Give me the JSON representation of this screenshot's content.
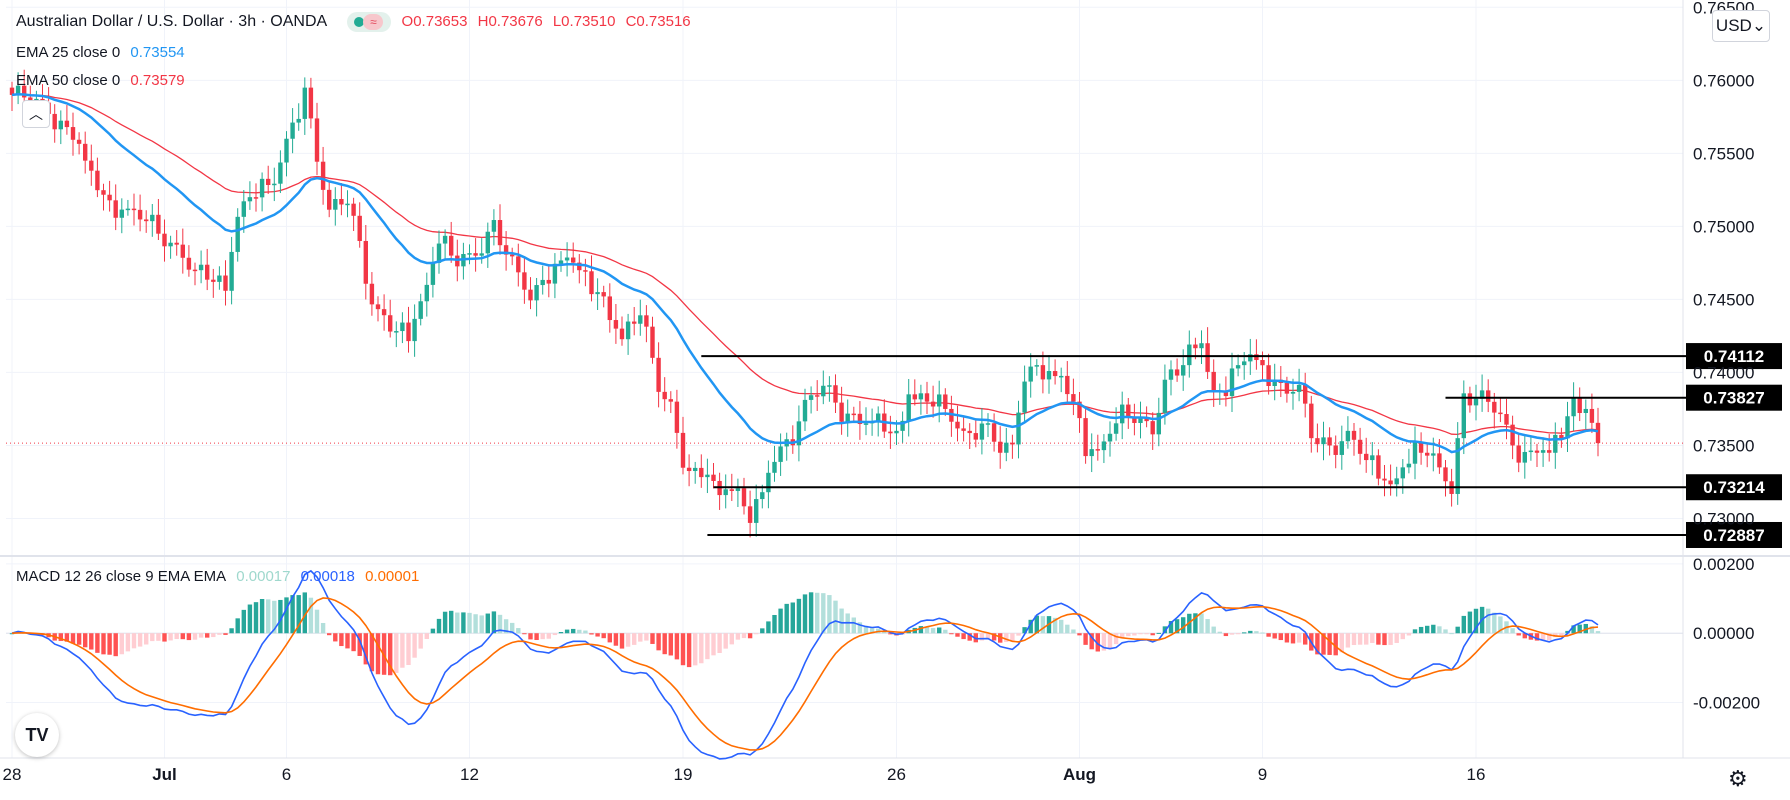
{
  "header": {
    "title": "Australian Dollar / U.S. Dollar · 3h · OANDA",
    "open": "O0.73653",
    "high": "H0.73676",
    "low": "L0.73510",
    "close": "C0.73516",
    "wave_icon": "≈",
    "currency": "USD",
    "currency_chevron": "⌄"
  },
  "indicators": {
    "ema25": {
      "label": "EMA 25 close 0",
      "value": "0.73554",
      "color": "#2196f3"
    },
    "ema50": {
      "label": "EMA 50 close 0",
      "value": "0.73579",
      "color": "#f23645"
    },
    "macd": {
      "label": "MACD 12 26 close 9 EMA EMA",
      "hist": "0.00017",
      "macd": "0.00018",
      "signal": "0.00001",
      "hist_color": "#9fd8cd",
      "macd_color": "#2962ff",
      "signal_color": "#ff6d00"
    }
  },
  "colors": {
    "up": "#22ab94",
    "down": "#f23645",
    "ema25": "#2196f3",
    "ema50": "#f23645",
    "level": "#000000",
    "grid": "#f0f3fa",
    "axis_text": "#131722"
  },
  "logo_text": "TV",
  "settings_icon": "⚙",
  "collapse_icon": "︿",
  "chart_data": {
    "type": "candlestick",
    "title": "Australian Dollar / U.S. Dollar, 3h, OANDA",
    "price_ticks": [
      "0.76500",
      "0.76000",
      "0.75500",
      "0.75000",
      "0.74500",
      "0.74000",
      "0.73500",
      "0.73000"
    ],
    "price_tick_values": [
      0.765,
      0.76,
      0.755,
      0.75,
      0.745,
      0.74,
      0.735,
      0.73
    ],
    "macd_ticks": [
      "0.00200",
      "0.00000",
      "-0.00200"
    ],
    "macd_tick_values": [
      0.002,
      0,
      -0.002
    ],
    "x_labels": [
      "28",
      "Jul",
      "6",
      "12",
      "19",
      "26",
      "Aug",
      "9",
      "16"
    ],
    "x_label_index": [
      0,
      25,
      45,
      75,
      110,
      145,
      175,
      205,
      240
    ],
    "ylim": [
      0.7275,
      0.7655
    ],
    "macd_ylim": [
      -0.0036,
      0.0022
    ],
    "levels": [
      {
        "label": "0.74112",
        "value": 0.74112,
        "from": 113
      },
      {
        "label": "0.73827",
        "value": 0.73827,
        "from": 235
      },
      {
        "label": "0.73214",
        "value": 0.73214,
        "from": 115
      },
      {
        "label": "0.72887",
        "value": 0.72887,
        "from": 114
      }
    ],
    "last_price": 0.73516,
    "close_keypoints": [
      [
        0,
        0.759
      ],
      [
        5,
        0.758
      ],
      [
        10,
        0.7565
      ],
      [
        13,
        0.7535
      ],
      [
        16,
        0.7515
      ],
      [
        20,
        0.7508
      ],
      [
        24,
        0.7495
      ],
      [
        28,
        0.7485
      ],
      [
        30,
        0.747
      ],
      [
        33,
        0.7462
      ],
      [
        35,
        0.7455
      ],
      [
        37,
        0.751
      ],
      [
        40,
        0.7525
      ],
      [
        43,
        0.753
      ],
      [
        45,
        0.756
      ],
      [
        48,
        0.7595
      ],
      [
        50,
        0.7545
      ],
      [
        52,
        0.7505
      ],
      [
        55,
        0.752
      ],
      [
        57,
        0.749
      ],
      [
        59,
        0.745
      ],
      [
        62,
        0.743
      ],
      [
        65,
        0.7425
      ],
      [
        68,
        0.746
      ],
      [
        70,
        0.749
      ],
      [
        73,
        0.7475
      ],
      [
        76,
        0.7485
      ],
      [
        79,
        0.7502
      ],
      [
        82,
        0.747
      ],
      [
        85,
        0.745
      ],
      [
        88,
        0.747
      ],
      [
        91,
        0.748
      ],
      [
        94,
        0.7465
      ],
      [
        97,
        0.745
      ],
      [
        100,
        0.742
      ],
      [
        103,
        0.744
      ],
      [
        106,
        0.7395
      ],
      [
        108,
        0.738
      ],
      [
        110,
        0.734
      ],
      [
        112,
        0.7325
      ],
      [
        114,
        0.733
      ],
      [
        116,
        0.7315
      ],
      [
        118,
        0.7325
      ],
      [
        121,
        0.73
      ],
      [
        123,
        0.7318
      ],
      [
        125,
        0.7345
      ],
      [
        128,
        0.7358
      ],
      [
        130,
        0.7375
      ],
      [
        133,
        0.7388
      ],
      [
        136,
        0.7375
      ],
      [
        139,
        0.737
      ],
      [
        142,
        0.7365
      ],
      [
        145,
        0.7355
      ],
      [
        147,
        0.7385
      ],
      [
        150,
        0.738
      ],
      [
        153,
        0.7375
      ],
      [
        156,
        0.736
      ],
      [
        159,
        0.7365
      ],
      [
        162,
        0.7345
      ],
      [
        164,
        0.7345
      ],
      [
        166,
        0.74
      ],
      [
        168,
        0.7405
      ],
      [
        170,
        0.74
      ],
      [
        172,
        0.7395
      ],
      [
        174,
        0.738
      ],
      [
        176,
        0.735
      ],
      [
        178,
        0.7345
      ],
      [
        180,
        0.7358
      ],
      [
        182,
        0.7368
      ],
      [
        184,
        0.737
      ],
      [
        187,
        0.7365
      ],
      [
        189,
        0.7395
      ],
      [
        191,
        0.74
      ],
      [
        193,
        0.741
      ],
      [
        195,
        0.742
      ],
      [
        197,
        0.7385
      ],
      [
        199,
        0.739
      ],
      [
        201,
        0.7405
      ],
      [
        203,
        0.7412
      ],
      [
        205,
        0.7405
      ],
      [
        208,
        0.739
      ],
      [
        211,
        0.7385
      ],
      [
        213,
        0.7355
      ],
      [
        216,
        0.735
      ],
      [
        219,
        0.736
      ],
      [
        222,
        0.734
      ],
      [
        224,
        0.733
      ],
      [
        226,
        0.7322
      ],
      [
        228,
        0.7335
      ],
      [
        230,
        0.7345
      ],
      [
        232,
        0.7345
      ],
      [
        234,
        0.7335
      ],
      [
        236,
        0.7325
      ],
      [
        238,
        0.7385
      ],
      [
        240,
        0.7382
      ],
      [
        242,
        0.7375
      ],
      [
        244,
        0.737
      ],
      [
        246,
        0.735
      ],
      [
        248,
        0.7345
      ],
      [
        250,
        0.7348
      ],
      [
        252,
        0.7345
      ],
      [
        254,
        0.736
      ],
      [
        256,
        0.738
      ],
      [
        258,
        0.7375
      ],
      [
        260,
        0.7352
      ]
    ],
    "n_bars": 261
  }
}
